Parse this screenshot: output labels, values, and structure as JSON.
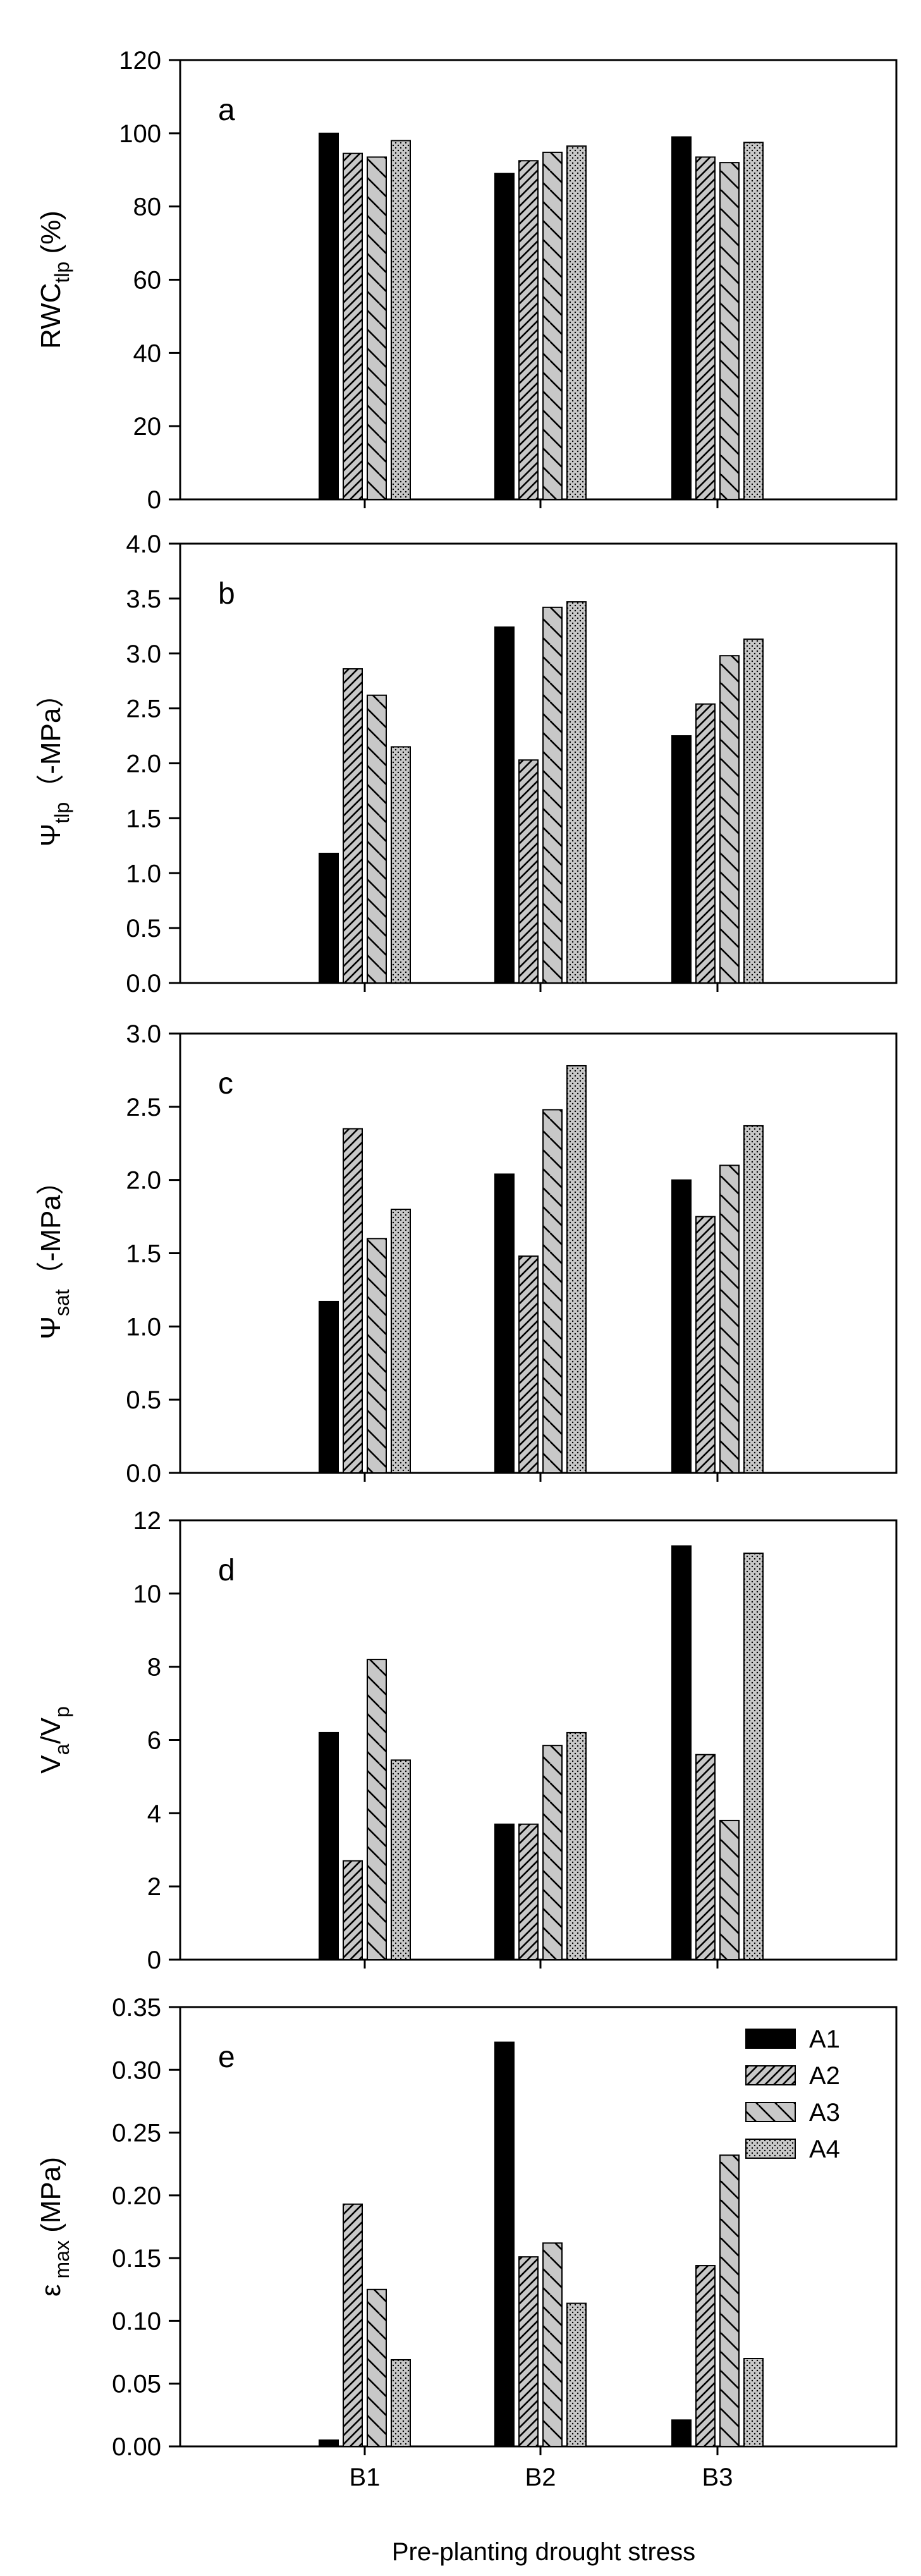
{
  "figure": {
    "xlabel": "Pre-planting drought stress",
    "categories": [
      "B1",
      "B2",
      "B3"
    ]
  },
  "legend": {
    "entries": [
      {
        "name": "A1",
        "pattern": "solid"
      },
      {
        "name": "A2",
        "pattern": "hatch-dense"
      },
      {
        "name": "A3",
        "pattern": "backslash"
      },
      {
        "name": "A4",
        "pattern": "dots"
      }
    ]
  },
  "colors": {
    "solid": "#000000",
    "bar_fill": "#c8c8c8",
    "axis": "#000000"
  },
  "chart_data": [
    {
      "type": "bar",
      "panel_label": "a",
      "ylabel_main": "RWC",
      "ylabel_sub": "tlp",
      "ylabel_tail": " (%)",
      "ylim": [
        0,
        120
      ],
      "yticks": [
        "0",
        "20",
        "40",
        "60",
        "80",
        "100",
        "120"
      ],
      "categories": [
        "B1",
        "B2",
        "B3"
      ],
      "series": [
        {
          "name": "A1",
          "values": [
            100.0,
            89.0,
            99.0
          ]
        },
        {
          "name": "A2",
          "values": [
            94.5,
            92.5,
            93.5
          ]
        },
        {
          "name": "A3",
          "values": [
            93.5,
            94.8,
            92.0
          ]
        },
        {
          "name": "A4",
          "values": [
            98.0,
            96.5,
            97.5
          ]
        }
      ]
    },
    {
      "type": "bar",
      "panel_label": "b",
      "ylabel_main": "Ψ",
      "ylabel_sub": "tlp",
      "ylabel_tail": "（-MPa）",
      "ylim": [
        0,
        4.0
      ],
      "yticks": [
        "0.0",
        "0.5",
        "1.0",
        "1.5",
        "2.0",
        "2.5",
        "3.0",
        "3.5",
        "4.0"
      ],
      "categories": [
        "B1",
        "B2",
        "B3"
      ],
      "series": [
        {
          "name": "A1",
          "values": [
            1.18,
            3.24,
            2.25
          ]
        },
        {
          "name": "A2",
          "values": [
            2.86,
            2.03,
            2.54
          ]
        },
        {
          "name": "A3",
          "values": [
            2.62,
            3.42,
            2.98
          ]
        },
        {
          "name": "A4",
          "values": [
            2.15,
            3.47,
            3.13
          ]
        }
      ]
    },
    {
      "type": "bar",
      "panel_label": "c",
      "ylabel_main": "Ψ",
      "ylabel_sub": "sat",
      "ylabel_tail": "（-MPa）",
      "ylim": [
        0,
        3.0
      ],
      "yticks": [
        "0.0",
        "0.5",
        "1.0",
        "1.5",
        "2.0",
        "2.5",
        "3.0"
      ],
      "categories": [
        "B1",
        "B2",
        "B3"
      ],
      "series": [
        {
          "name": "A1",
          "values": [
            1.17,
            2.04,
            2.0
          ]
        },
        {
          "name": "A2",
          "values": [
            2.35,
            1.48,
            1.75
          ]
        },
        {
          "name": "A3",
          "values": [
            1.6,
            2.48,
            2.1
          ]
        },
        {
          "name": "A4",
          "values": [
            1.8,
            2.78,
            2.37
          ]
        }
      ]
    },
    {
      "type": "bar",
      "panel_label": "d",
      "ylabel_main": "V",
      "ylabel_sub": "a",
      "ylabel_tail": "/V",
      "ylabel_sub2": "p",
      "ylim": [
        0,
        12
      ],
      "yticks": [
        "0",
        "2",
        "4",
        "6",
        "8",
        "10",
        "12"
      ],
      "categories": [
        "B1",
        "B2",
        "B3"
      ],
      "series": [
        {
          "name": "A1",
          "values": [
            6.2,
            3.7,
            11.3
          ]
        },
        {
          "name": "A2",
          "values": [
            2.7,
            3.7,
            5.6
          ]
        },
        {
          "name": "A3",
          "values": [
            8.2,
            5.85,
            3.8
          ]
        },
        {
          "name": "A4",
          "values": [
            5.45,
            6.2,
            11.1
          ]
        }
      ]
    },
    {
      "type": "bar",
      "panel_label": "e",
      "ylabel_main": "ε",
      "ylabel_sub": " max",
      "ylabel_tail": " (MPa)",
      "ylim": [
        0,
        0.35
      ],
      "yticks": [
        "0.00",
        "0.05",
        "0.10",
        "0.15",
        "0.20",
        "0.25",
        "0.30",
        "0.35"
      ],
      "categories": [
        "B1",
        "B2",
        "B3"
      ],
      "legend": "top-right",
      "series": [
        {
          "name": "A1",
          "values": [
            0.005,
            0.322,
            0.021
          ]
        },
        {
          "name": "A2",
          "values": [
            0.193,
            0.151,
            0.144
          ]
        },
        {
          "name": "A3",
          "values": [
            0.125,
            0.162,
            0.232
          ]
        },
        {
          "name": "A4",
          "values": [
            0.069,
            0.114,
            0.07
          ]
        }
      ]
    }
  ]
}
